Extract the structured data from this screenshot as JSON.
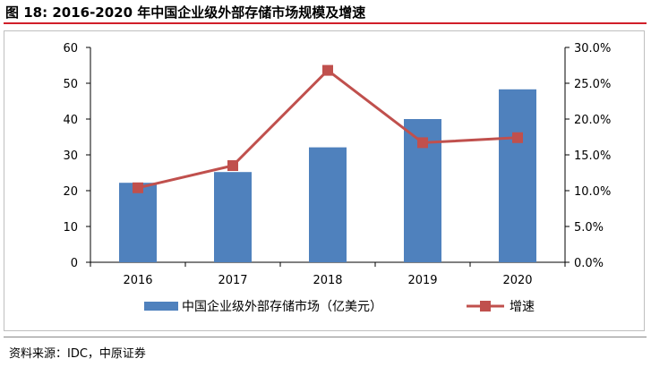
{
  "header": {
    "title": "图 18: 2016-2020 年中国企业级外部存储市场规模及增速"
  },
  "footer": {
    "source": "资料来源：IDC，中原证券"
  },
  "colors": {
    "bar": "#4f81bd",
    "line": "#c0504d",
    "title_rule": "#d11f2a"
  },
  "chart_data": {
    "type": "bar",
    "categories": [
      "2016",
      "2017",
      "2018",
      "2019",
      "2020"
    ],
    "series": [
      {
        "name": "中国企业级外部存储市场（亿美元）",
        "type": "bar",
        "axis": "left",
        "values": [
          22.2,
          25.2,
          32.1,
          40.0,
          48.3
        ]
      },
      {
        "name": "增速",
        "type": "line",
        "axis": "right",
        "marker": "square",
        "values": [
          10.4,
          13.5,
          26.8,
          16.7,
          17.4
        ]
      }
    ],
    "ylim": [
      0,
      60
    ],
    "y_ticks": [
      0,
      10,
      20,
      30,
      40,
      50,
      60
    ],
    "y2lim": [
      0,
      30
    ],
    "y2_ticks": [
      "0.0%",
      "5.0%",
      "10.0%",
      "15.0%",
      "20.0%",
      "25.0%",
      "30.0%"
    ],
    "grid": false,
    "legend": "bottom"
  }
}
